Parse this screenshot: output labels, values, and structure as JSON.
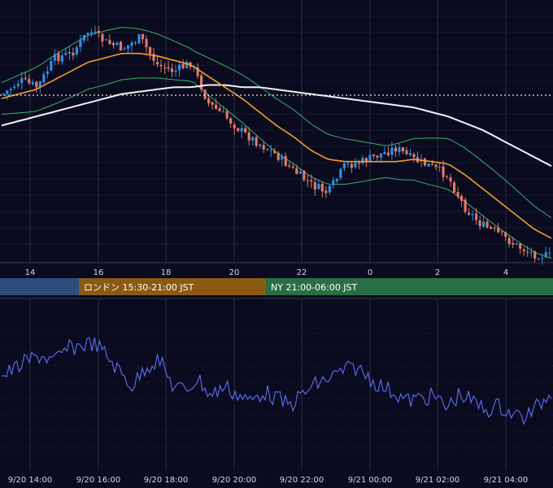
{
  "colors": {
    "background": "#0a0b1e",
    "grid": "#2a2d45",
    "candle_up": "#2f8fe6",
    "candle_down": "#e07a6a",
    "sma_short": "#f39c2b",
    "sma_long": "#f2f2f2",
    "bollinger": "#3fae6a",
    "oscillator": "#5a68e8",
    "session_asia": "#2d4e7c",
    "session_london": "#8a5a13",
    "session_ny": "#2a6e45",
    "current_price_line": "#e8e8e8"
  },
  "price_chart": {
    "x_ticks": [
      "14",
      "16",
      "18",
      "20",
      "22",
      "0",
      "2",
      "4"
    ],
    "current_price_level": "dotted"
  },
  "sessions": [
    {
      "name": "asia",
      "label": ""
    },
    {
      "name": "london",
      "label": "ロンドン 15:30-21:00 JST"
    },
    {
      "name": "ny",
      "label": "NY 21:00-06:00 JST"
    }
  ],
  "oscillator_panel": {
    "x_labels": [
      "9/20 14:00",
      "9/20 16:00",
      "9/20 18:00",
      "9/20 20:00",
      "9/20 22:00",
      "9/21 00:00",
      "9/21 02:00",
      "9/21 04:00"
    ]
  },
  "chart_data": [
    {
      "type": "candlestick",
      "title": "",
      "x_time": [
        "9/20 13:00",
        "9/20 13:30",
        "9/20 14:00",
        "9/20 14:30",
        "9/20 15:00",
        "9/20 15:30",
        "9/20 16:00",
        "9/20 16:30",
        "9/20 17:00",
        "9/20 17:30",
        "9/20 18:00",
        "9/20 18:30",
        "9/20 19:00",
        "9/20 19:30",
        "9/20 20:00",
        "9/20 20:30",
        "9/20 21:00",
        "9/20 21:30",
        "9/20 22:00",
        "9/20 22:30",
        "9/20 23:00",
        "9/20 23:30",
        "9/21 00:00",
        "9/21 00:30",
        "9/21 01:00",
        "9/21 01:30",
        "9/21 02:00",
        "9/21 02:30",
        "9/21 03:00",
        "9/21 03:30",
        "9/21 04:00",
        "9/21 04:30",
        "9/21 05:00"
      ],
      "close_relative": [
        0.28,
        0.22,
        0.25,
        0.12,
        0.1,
        0.0,
        0.05,
        0.08,
        0.03,
        0.15,
        0.18,
        0.14,
        0.32,
        0.38,
        0.45,
        0.5,
        0.55,
        0.62,
        0.68,
        0.72,
        0.6,
        0.58,
        0.55,
        0.52,
        0.57,
        0.6,
        0.64,
        0.78,
        0.86,
        0.9,
        0.95,
        0.99,
        1.0
      ],
      "sma_short_relative": [
        0.3,
        0.28,
        0.26,
        0.22,
        0.18,
        0.14,
        0.12,
        0.1,
        0.1,
        0.11,
        0.13,
        0.15,
        0.2,
        0.25,
        0.3,
        0.36,
        0.42,
        0.47,
        0.53,
        0.57,
        0.58,
        0.58,
        0.58,
        0.58,
        0.57,
        0.58,
        0.59,
        0.64,
        0.7,
        0.76,
        0.82,
        0.88,
        0.92
      ],
      "sma_long_relative": [
        0.42,
        0.4,
        0.38,
        0.36,
        0.34,
        0.32,
        0.3,
        0.28,
        0.27,
        0.26,
        0.25,
        0.25,
        0.24,
        0.24,
        0.25,
        0.25,
        0.26,
        0.27,
        0.28,
        0.29,
        0.3,
        0.31,
        0.32,
        0.33,
        0.34,
        0.36,
        0.38,
        0.41,
        0.44,
        0.48,
        0.52,
        0.56,
        0.6
      ],
      "x_ticks": [
        "14",
        "16",
        "18",
        "20",
        "22",
        "0",
        "2",
        "4"
      ],
      "grid": true,
      "legend": "none",
      "y_axis": "not shown"
    },
    {
      "type": "line",
      "title": "",
      "name": "",
      "x_ticks": [
        "9/20 14:00",
        "9/20 16:00",
        "9/20 18:00",
        "9/20 20:00",
        "9/20 22:00",
        "9/21 00:00",
        "9/21 02:00",
        "9/21 04:00"
      ],
      "values_relative": [
        0.4,
        0.32,
        0.24,
        0.18,
        0.25,
        0.12,
        0.08,
        0.05,
        0.18,
        0.35,
        0.5,
        0.3,
        0.22,
        0.48,
        0.55,
        0.42,
        0.6,
        0.5,
        0.58,
        0.66,
        0.55,
        0.62,
        0.7,
        0.58,
        0.48,
        0.42,
        0.35,
        0.3,
        0.4,
        0.5,
        0.56,
        0.65,
        0.62,
        0.6,
        0.72,
        0.58,
        0.66,
        0.74,
        0.7,
        0.78,
        0.82,
        0.7,
        0.55
      ],
      "grid": true,
      "legend": "none",
      "y_axis": "not shown"
    }
  ]
}
